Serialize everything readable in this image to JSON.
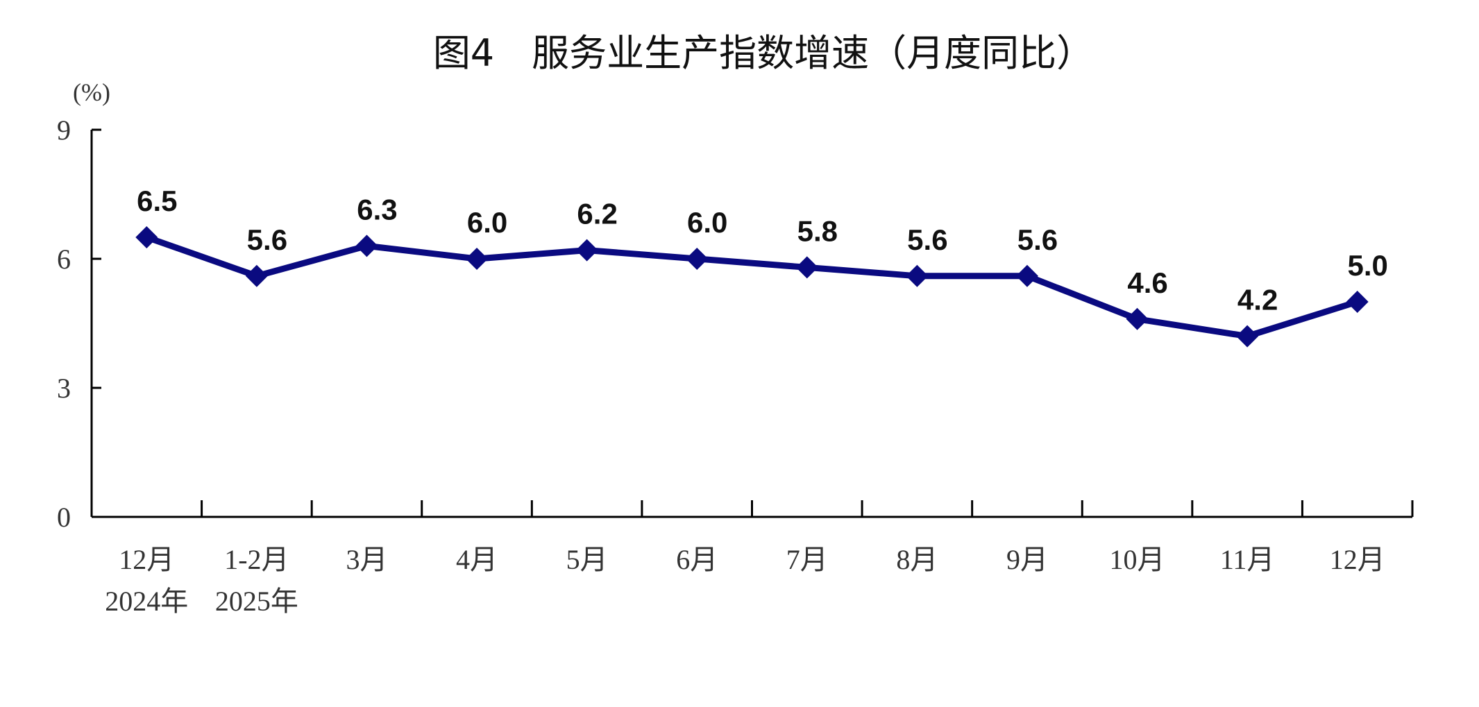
{
  "chart_data": {
    "type": "line",
    "title": "图4　服务业生产指数增速（月度同比）",
    "ylabel": "(%)",
    "xlabel": "",
    "ylim": [
      0,
      9
    ],
    "yticks": [
      0,
      3,
      6,
      9
    ],
    "categories": [
      "12月",
      "1-2月",
      "3月",
      "4月",
      "5月",
      "6月",
      "7月",
      "8月",
      "9月",
      "10月",
      "11月",
      "12月"
    ],
    "year_labels": [
      "2024年",
      "2025年"
    ],
    "values": [
      6.5,
      5.6,
      6.3,
      6.0,
      6.2,
      6.0,
      5.8,
      5.6,
      5.6,
      4.6,
      4.2,
      5.0
    ],
    "data_labels": [
      "6.5",
      "5.6",
      "6.3",
      "6.0",
      "6.2",
      "6.0",
      "5.8",
      "5.6",
      "5.6",
      "4.6",
      "4.2",
      "5.0"
    ],
    "marker": "diamond",
    "grid": false,
    "line_color": "#0a0a80"
  }
}
